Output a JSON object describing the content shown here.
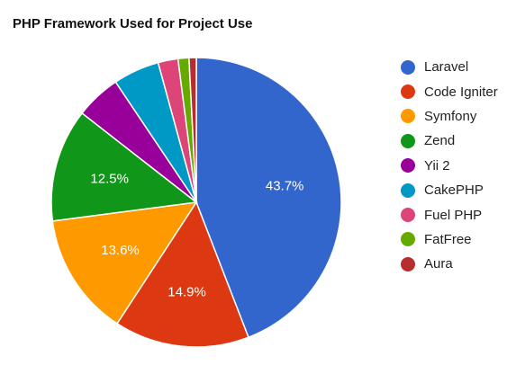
{
  "chart_data": {
    "type": "pie",
    "title": "PHP Framework Used for Project Use",
    "legend_position": "right",
    "slices": [
      {
        "label": "Laravel",
        "value": 43.7,
        "color": "#3366cc",
        "data_label": "43.7%"
      },
      {
        "label": "Code Igniter",
        "value": 14.9,
        "color": "#dc3912",
        "data_label": "14.9%"
      },
      {
        "label": "Symfony",
        "value": 13.6,
        "color": "#ff9900",
        "data_label": "13.6%"
      },
      {
        "label": "Zend",
        "value": 12.5,
        "color": "#109618",
        "data_label": "12.5%"
      },
      {
        "label": "Yii 2",
        "value": 5.0,
        "color": "#990099",
        "data_label": ""
      },
      {
        "label": "CakePHP",
        "value": 5.1,
        "color": "#0099c6",
        "data_label": ""
      },
      {
        "label": "Fuel PHP",
        "value": 2.2,
        "color": "#dd4477",
        "data_label": ""
      },
      {
        "label": "FatFree",
        "value": 1.2,
        "color": "#66aa00",
        "data_label": ""
      },
      {
        "label": "Aura",
        "value": 0.8,
        "color": "#b82e2e",
        "data_label": ""
      }
    ]
  }
}
